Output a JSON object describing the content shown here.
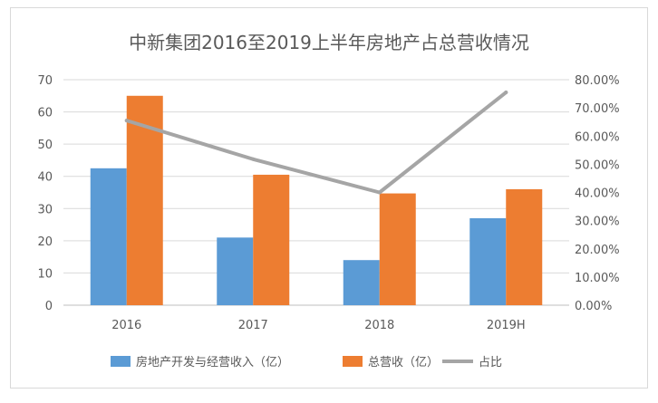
{
  "chart_data": {
    "type": "bar",
    "title": "中新集团2016至2019上半年房地产占总营收情况",
    "categories": [
      "2016",
      "2017",
      "2018",
      "2019H"
    ],
    "series": [
      {
        "name": "房地产开发与经营收入（亿）",
        "type": "bar",
        "axis": "left",
        "color": "#5b9bd5",
        "values": [
          42.5,
          21,
          14,
          27
        ]
      },
      {
        "name": "总营收（亿）",
        "type": "bar",
        "axis": "left",
        "color": "#ed7d31",
        "values": [
          65,
          40.5,
          34.7,
          36
        ]
      },
      {
        "name": "占比",
        "type": "line",
        "axis": "right",
        "color": "#a5a5a5",
        "values": [
          0.655,
          0.518,
          0.4,
          0.755
        ]
      }
    ],
    "y_left": {
      "min": 0,
      "max": 70,
      "ticks": [
        "0",
        "10",
        "20",
        "30",
        "40",
        "50",
        "60",
        "70"
      ]
    },
    "y_right": {
      "min": 0,
      "max": 0.8,
      "ticks": [
        "0.00%",
        "10.00%",
        "20.00%",
        "30.00%",
        "40.00%",
        "50.00%",
        "60.00%",
        "70.00%",
        "80.00%"
      ]
    },
    "grid": true,
    "legend_position": "bottom"
  }
}
